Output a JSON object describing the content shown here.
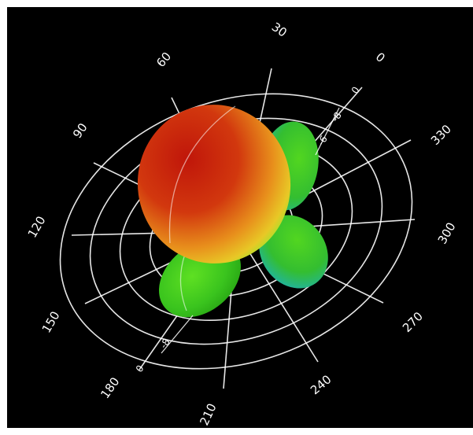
{
  "angle_labels": {
    "a0": "0",
    "a30": "30",
    "a60": "60",
    "a90": "90",
    "a120": "120",
    "a150": "150",
    "a180": "180",
    "a210": "210",
    "a240": "240",
    "a270": "270",
    "a300": "300",
    "a330": "330"
  },
  "radial_labels": {
    "top_0": "0",
    "top_m8": "-8",
    "top_m6": "-6",
    "bottom_m8": "-8",
    "bottom_0": "0"
  },
  "colors": {
    "background": "#000000",
    "grid": "#ffffff",
    "lobe_high": "#c0160a",
    "lobe_mid": "#f0a020",
    "lobe_low": "#3ac41e",
    "lobe_inner": "#1ab0c8"
  },
  "icons": [
    "3d-polar-radiation-pattern"
  ]
}
